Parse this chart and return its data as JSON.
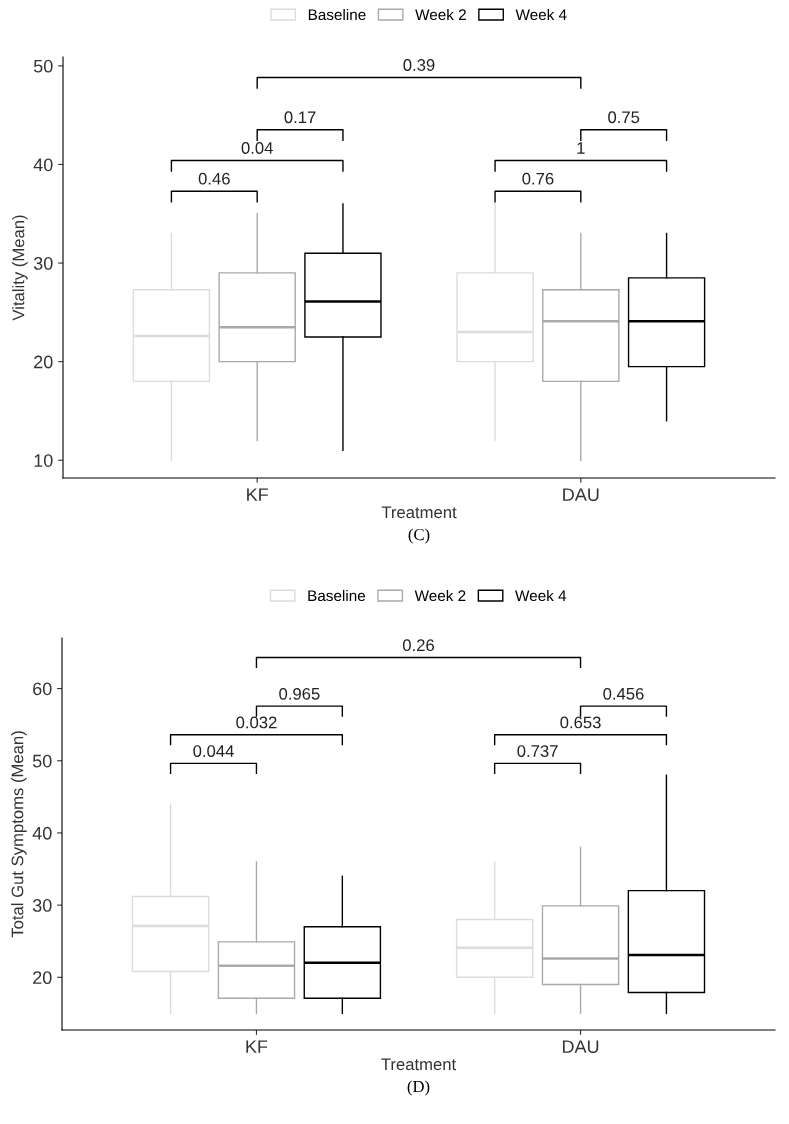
{
  "chart_data": [
    {
      "type": "box",
      "categories": [
        "KF",
        "DAU"
      ],
      "xlabel": "Treatment",
      "ylabel": "Vitality (Mean)",
      "ylim": [
        8.2,
        50.9
      ],
      "yticks": [
        10,
        20,
        30,
        40,
        50
      ],
      "legend": "top",
      "grid": false,
      "series": [
        {
          "name": "Baseline",
          "color": "#dcdcdc",
          "boxes": [
            {
              "low": 10,
              "q1": 18,
              "median": 22.6,
              "q3": 27.3,
              "high": 33
            },
            {
              "low": 12,
              "q1": 20,
              "median": 23,
              "q3": 29,
              "high": 36
            }
          ]
        },
        {
          "name": "Week 2",
          "color": "#a9a9a9",
          "boxes": [
            {
              "low": 12,
              "q1": 20,
              "median": 23.5,
              "q3": 29,
              "high": 35
            },
            {
              "low": 10,
              "q1": 18,
              "median": 24.1,
              "q3": 27.3,
              "high": 33
            }
          ]
        },
        {
          "name": "Week 4",
          "color": "#000000",
          "boxes": [
            {
              "low": 11,
              "q1": 22.5,
              "median": 26.1,
              "q3": 31,
              "high": 36
            },
            {
              "low": 14,
              "q1": 19.5,
              "median": 24.1,
              "q3": 28.5,
              "high": 33
            }
          ]
        }
      ],
      "annotations": [
        "0.46",
        "0.04",
        "0.17",
        "0.76",
        "1",
        "0.75",
        "0.39",
        "(C)"
      ]
    },
    {
      "type": "box",
      "categories": [
        "KF",
        "DAU"
      ],
      "xlabel": "Treatment",
      "ylabel": "Total Gut Symptoms (Mean)",
      "ylim": [
        12.7,
        67
      ],
      "yticks": [
        20,
        30,
        40,
        50,
        60
      ],
      "legend": "top",
      "grid": false,
      "series": [
        {
          "name": "Baseline",
          "color": "#dcdcdc",
          "boxes": [
            {
              "low": 15,
              "q1": 20.8,
              "median": 27.1,
              "q3": 31.2,
              "high": 44
            },
            {
              "low": 15,
              "q1": 20,
              "median": 24.1,
              "q3": 28,
              "high": 36
            }
          ]
        },
        {
          "name": "Week 2",
          "color": "#a9a9a9",
          "boxes": [
            {
              "low": 15,
              "q1": 17.1,
              "median": 21.6,
              "q3": 24.9,
              "high": 36
            },
            {
              "low": 15,
              "q1": 19,
              "median": 22.6,
              "q3": 29.9,
              "high": 38
            }
          ]
        },
        {
          "name": "Week 4",
          "color": "#000000",
          "boxes": [
            {
              "low": 15,
              "q1": 17.1,
              "median": 22,
              "q3": 27,
              "high": 34
            },
            {
              "low": 15,
              "q1": 17.9,
              "median": 23.1,
              "q3": 32,
              "high": 48
            }
          ]
        }
      ],
      "annotations": [
        "0.044",
        "0.032",
        "0.965",
        "0.737",
        "0.653",
        "0.456",
        "0.26",
        "(D)"
      ]
    }
  ]
}
